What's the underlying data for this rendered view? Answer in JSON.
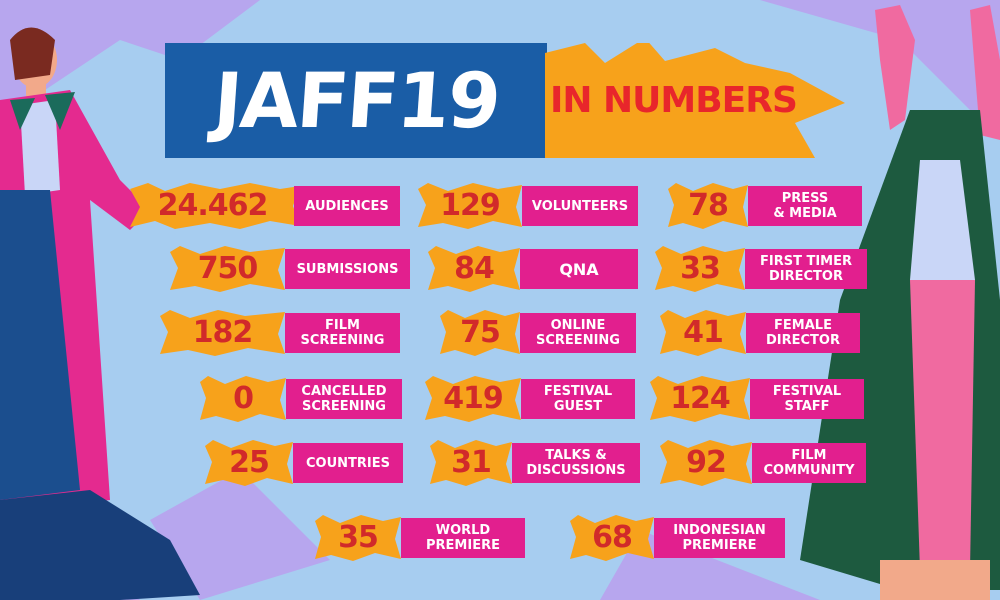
{
  "title": "JAFF19",
  "subtitle": "IN NUMBERS",
  "colors": {
    "background": "#a7cdf0",
    "accent_orange": "#f7a21b",
    "label_pink": "#e21f8e",
    "title_blue": "#1a5da6",
    "number_red": "#d12a2a"
  },
  "stats": [
    {
      "value": "24.462",
      "label": "AUDIENCES"
    },
    {
      "value": "129",
      "label": "VOLUNTEERS"
    },
    {
      "value": "78",
      "label": "PRESS\n& MEDIA"
    },
    {
      "value": "750",
      "label": "SUBMISSIONS"
    },
    {
      "value": "84",
      "label": "QNA"
    },
    {
      "value": "33",
      "label": "FIRST TIMER\nDIRECTOR"
    },
    {
      "value": "182",
      "label": "FILM\nSCREENING"
    },
    {
      "value": "75",
      "label": "ONLINE\nSCREENING"
    },
    {
      "value": "41",
      "label": "FEMALE\nDIRECTOR"
    },
    {
      "value": "0",
      "label": "CANCELLED\nSCREENING"
    },
    {
      "value": "419",
      "label": "FESTIVAL\nGUEST"
    },
    {
      "value": "124",
      "label": "FESTIVAL\nSTAFF"
    },
    {
      "value": "25",
      "label": "COUNTRIES"
    },
    {
      "value": "31",
      "label": "TALKS &\nDISCUSSIONS"
    },
    {
      "value": "92",
      "label": "FILM\nCOMMUNITY"
    },
    {
      "value": "35",
      "label": "WORLD\nPREMIERE"
    },
    {
      "value": "68",
      "label": "INDONESIAN\nPREMIERE"
    }
  ]
}
